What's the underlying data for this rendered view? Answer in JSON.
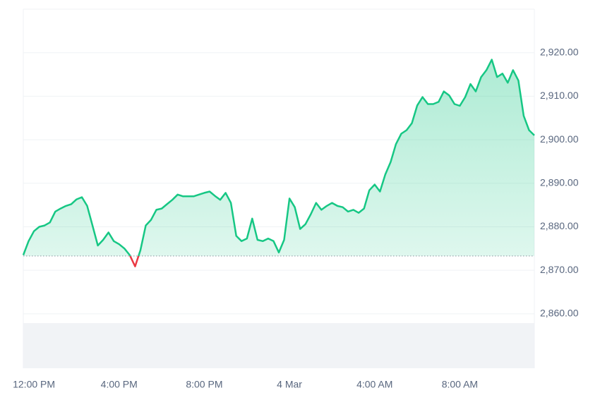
{
  "chart_data": {
    "type": "line",
    "series": [
      {
        "color": "#16c784",
        "below_color": "#ea3943",
        "values": [
          2873.5,
          2876.7,
          2879.0,
          2880.0,
          2880.3,
          2881.0,
          2883.5,
          2884.2,
          2884.8,
          2885.2,
          2886.3,
          2886.8,
          2884.8,
          2880.3,
          2875.7,
          2877.0,
          2878.7,
          2876.7,
          2876.0,
          2875.0,
          2873.5,
          2870.9,
          2874.6,
          2880.3,
          2881.6,
          2883.9,
          2884.2,
          2885.2,
          2886.2,
          2887.4,
          2887.0,
          2887.0,
          2887.0,
          2887.4,
          2887.8,
          2888.1,
          2887.1,
          2886.2,
          2887.8,
          2885.5,
          2877.9,
          2876.7,
          2877.3,
          2881.9,
          2877.0,
          2876.7,
          2877.3,
          2876.7,
          2874.1,
          2877.0,
          2886.5,
          2884.5,
          2879.5,
          2880.6,
          2882.9,
          2885.5,
          2883.9,
          2884.8,
          2885.5,
          2884.8,
          2884.5,
          2883.5,
          2883.9,
          2883.2,
          2884.2,
          2888.4,
          2889.7,
          2888.1,
          2892.0,
          2894.9,
          2899.0,
          2901.4,
          2902.2,
          2903.8,
          2907.9,
          2909.8,
          2908.2,
          2908.2,
          2908.7,
          2911.1,
          2910.2,
          2908.2,
          2907.8,
          2909.8,
          2912.8,
          2911.1,
          2914.4,
          2916.0,
          2918.4,
          2914.4,
          2915.2,
          2913.1,
          2916.0,
          2913.6,
          2905.5,
          2902.2,
          2901.0
        ]
      }
    ],
    "baseline": 2873.3,
    "xlim": [
      0,
      96
    ],
    "xticks": [
      {
        "value": 2,
        "label": "12:00 PM"
      },
      {
        "value": 18,
        "label": "4:00 PM"
      },
      {
        "value": 34,
        "label": "8:00 PM"
      },
      {
        "value": 50,
        "label": "4 Mar"
      },
      {
        "value": 66,
        "label": "4:00 AM"
      },
      {
        "value": 82,
        "label": "8:00 AM"
      }
    ],
    "ylim": [
      2847.5,
      2930
    ],
    "yticks": [
      {
        "value": 2860,
        "label": "2,860.00"
      },
      {
        "value": 2870,
        "label": "2,870.00"
      },
      {
        "value": 2880,
        "label": "2,880.00"
      },
      {
        "value": 2890,
        "label": "2,890.00"
      },
      {
        "value": 2900,
        "label": "2,900.00"
      },
      {
        "value": 2910,
        "label": "2,910.00"
      },
      {
        "value": 2920,
        "label": "2,920.00"
      }
    ],
    "grid": true
  }
}
